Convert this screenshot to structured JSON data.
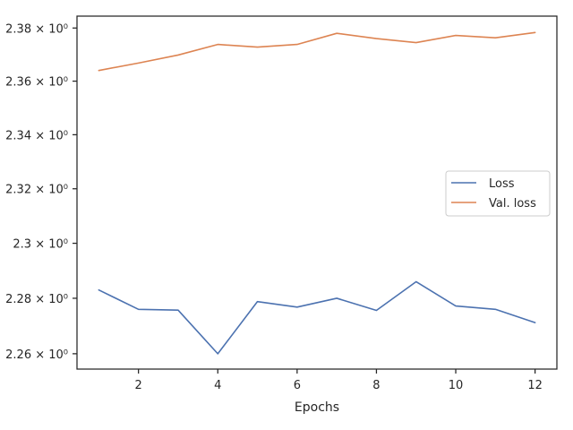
{
  "chart_data": {
    "type": "line",
    "title": "",
    "xlabel": "Epochs",
    "ylabel": "",
    "x": [
      1,
      2,
      3,
      4,
      5,
      6,
      7,
      8,
      9,
      10,
      11,
      12
    ],
    "xlim": [
      0.45,
      12.55
    ],
    "ylim": [
      2.2545,
      2.3845
    ],
    "yscale": "log",
    "xticks": [
      2,
      4,
      6,
      8,
      10,
      12
    ],
    "yticks": [
      {
        "value": 2.26,
        "label": "2.26 × 10⁰"
      },
      {
        "value": 2.28,
        "label": "2.28 × 10⁰"
      },
      {
        "value": 2.3,
        "label": "2.3 × 10⁰"
      },
      {
        "value": 2.32,
        "label": "2.32 × 10⁰"
      },
      {
        "value": 2.34,
        "label": "2.34 × 10⁰"
      },
      {
        "value": 2.36,
        "label": "2.36 × 10⁰"
      },
      {
        "value": 2.38,
        "label": "2.38 × 10⁰"
      }
    ],
    "grid": false,
    "legend_position": "center-right",
    "series": [
      {
        "name": "Loss",
        "color": "#4c72b0",
        "values": [
          2.283,
          2.276,
          2.2757,
          2.26,
          2.2788,
          2.2768,
          2.28,
          2.2756,
          2.286,
          2.2772,
          2.276,
          2.2712
        ]
      },
      {
        "name": "Val. loss",
        "color": "#dd8452",
        "values": [
          2.364,
          2.3668,
          2.3698,
          2.3738,
          2.3728,
          2.3738,
          2.378,
          2.376,
          2.3745,
          2.3772,
          2.3763,
          2.3783
        ]
      }
    ]
  }
}
